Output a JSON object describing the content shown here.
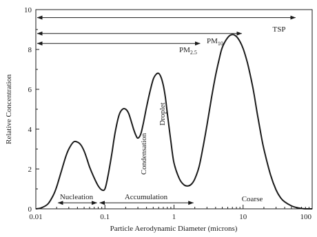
{
  "chart_data": {
    "type": "line",
    "title": "",
    "xlabel": "Particle Aerodynamic Diameter (microns)",
    "ylabel": "Relative Concentration",
    "xscale": "log",
    "xlim": [
      0.01,
      100
    ],
    "ylim": [
      0,
      10
    ],
    "grid": false,
    "x_ticks": [
      {
        "v": 0.01,
        "label": "0.01"
      },
      {
        "v": 0.1,
        "label": "0.1"
      },
      {
        "v": 1,
        "label": "1"
      },
      {
        "v": 10,
        "label": "10"
      },
      {
        "v": 100,
        "label": "100"
      }
    ],
    "y_ticks": [
      {
        "v": 0,
        "label": "0"
      },
      {
        "v": 2,
        "label": "2"
      },
      {
        "v": 4,
        "label": "4"
      },
      {
        "v": 6,
        "label": "6"
      },
      {
        "v": 8,
        "label": "8"
      },
      {
        "v": 10,
        "label": "10"
      }
    ],
    "series": [
      {
        "x": [
          0.01,
          0.012,
          0.015,
          0.018,
          0.02,
          0.023,
          0.027,
          0.03,
          0.035,
          0.04,
          0.045,
          0.05,
          0.055,
          0.06,
          0.07,
          0.08,
          0.09,
          0.1,
          0.11,
          0.125,
          0.14,
          0.16,
          0.18,
          0.2,
          0.22,
          0.24,
          0.26,
          0.28,
          0.3,
          0.33,
          0.36,
          0.4,
          0.45,
          0.5,
          0.55,
          0.6,
          0.65,
          0.7,
          0.75,
          0.8,
          0.9,
          1.0,
          1.2,
          1.4,
          1.6,
          1.8,
          2.0,
          2.3,
          2.6,
          3.0,
          3.5,
          4.0,
          4.5,
          5.0,
          6.0,
          7.0,
          8.0,
          9.0,
          10,
          11,
          12,
          14,
          16,
          18,
          20,
          25,
          30,
          35,
          40,
          50,
          60,
          70,
          80,
          100
        ],
        "values": [
          0.0,
          0.05,
          0.25,
          0.7,
          1.1,
          1.8,
          2.6,
          3.0,
          3.35,
          3.35,
          3.2,
          2.9,
          2.5,
          2.1,
          1.55,
          1.15,
          0.95,
          1.0,
          1.6,
          2.7,
          3.8,
          4.7,
          5.0,
          5.0,
          4.8,
          4.4,
          4.0,
          3.7,
          3.55,
          3.75,
          4.3,
          5.1,
          5.9,
          6.5,
          6.75,
          6.8,
          6.6,
          6.2,
          5.6,
          4.8,
          3.4,
          2.3,
          1.5,
          1.2,
          1.15,
          1.25,
          1.5,
          2.1,
          3.0,
          4.2,
          5.6,
          6.7,
          7.5,
          8.1,
          8.6,
          8.75,
          8.65,
          8.4,
          8.05,
          7.6,
          7.1,
          6.0,
          4.8,
          3.8,
          3.0,
          1.7,
          0.95,
          0.55,
          0.35,
          0.15,
          0.06,
          0.02,
          0.0,
          0.0
        ]
      }
    ],
    "annotations": {
      "condensation": "Condensation",
      "droplet": "Droplet",
      "coarse": "Coarse",
      "tsp": "TSP",
      "pm10_base": "PM",
      "pm10_sub": "10",
      "pm25_base": "PM",
      "pm25_sub": "2.5",
      "nucleation": "Nucleation",
      "accumulation": "Accumulation"
    },
    "range_arrows": {
      "tsp": {
        "from": 0.01,
        "to": 60,
        "y": 9.6
      },
      "pm10": {
        "from": 0.01,
        "to": 10,
        "y": 8.8
      },
      "pm25": {
        "from": 0.01,
        "to": 2.5,
        "y": 8.3
      },
      "nucleation": {
        "from": 0.02,
        "to": 0.08,
        "y": 0.3
      },
      "accumulation": {
        "from": 0.08,
        "to": 2,
        "y": 0.3
      }
    }
  }
}
